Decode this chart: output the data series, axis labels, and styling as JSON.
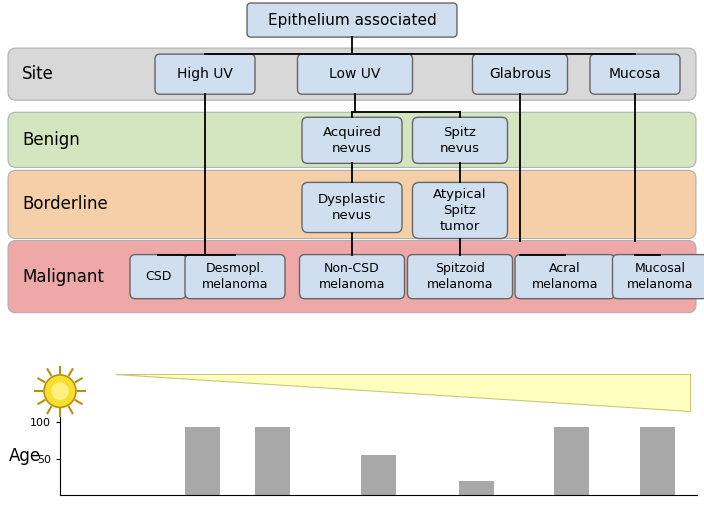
{
  "title": "Epithelium associated",
  "row_labels": [
    "Site",
    "Benign",
    "Borderline",
    "Malignant"
  ],
  "row_colors": [
    "#d8d8d8",
    "#d4e6c0",
    "#f5cfa8",
    "#eea8a8"
  ],
  "box_facecolor": "#d0dff0",
  "box_edgecolor": "#666666",
  "bar_heights": [
    93,
    93,
    55,
    20,
    93,
    93
  ],
  "bar_color": "#a8a8a8",
  "age_label": "Age",
  "age_yticks": [
    50,
    100
  ],
  "ylim_age": [
    0,
    108
  ]
}
